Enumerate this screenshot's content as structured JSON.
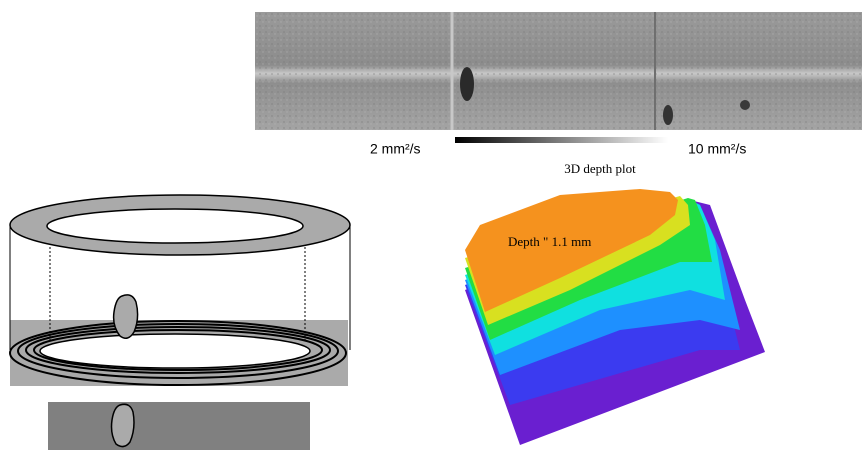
{
  "colorbar": {
    "min_label": "2 mm²/s",
    "max_label": "10 mm²/s"
  },
  "depth_plot": {
    "title": "3D depth plot",
    "annotation": "Depth \"  1.1 mm"
  }
}
